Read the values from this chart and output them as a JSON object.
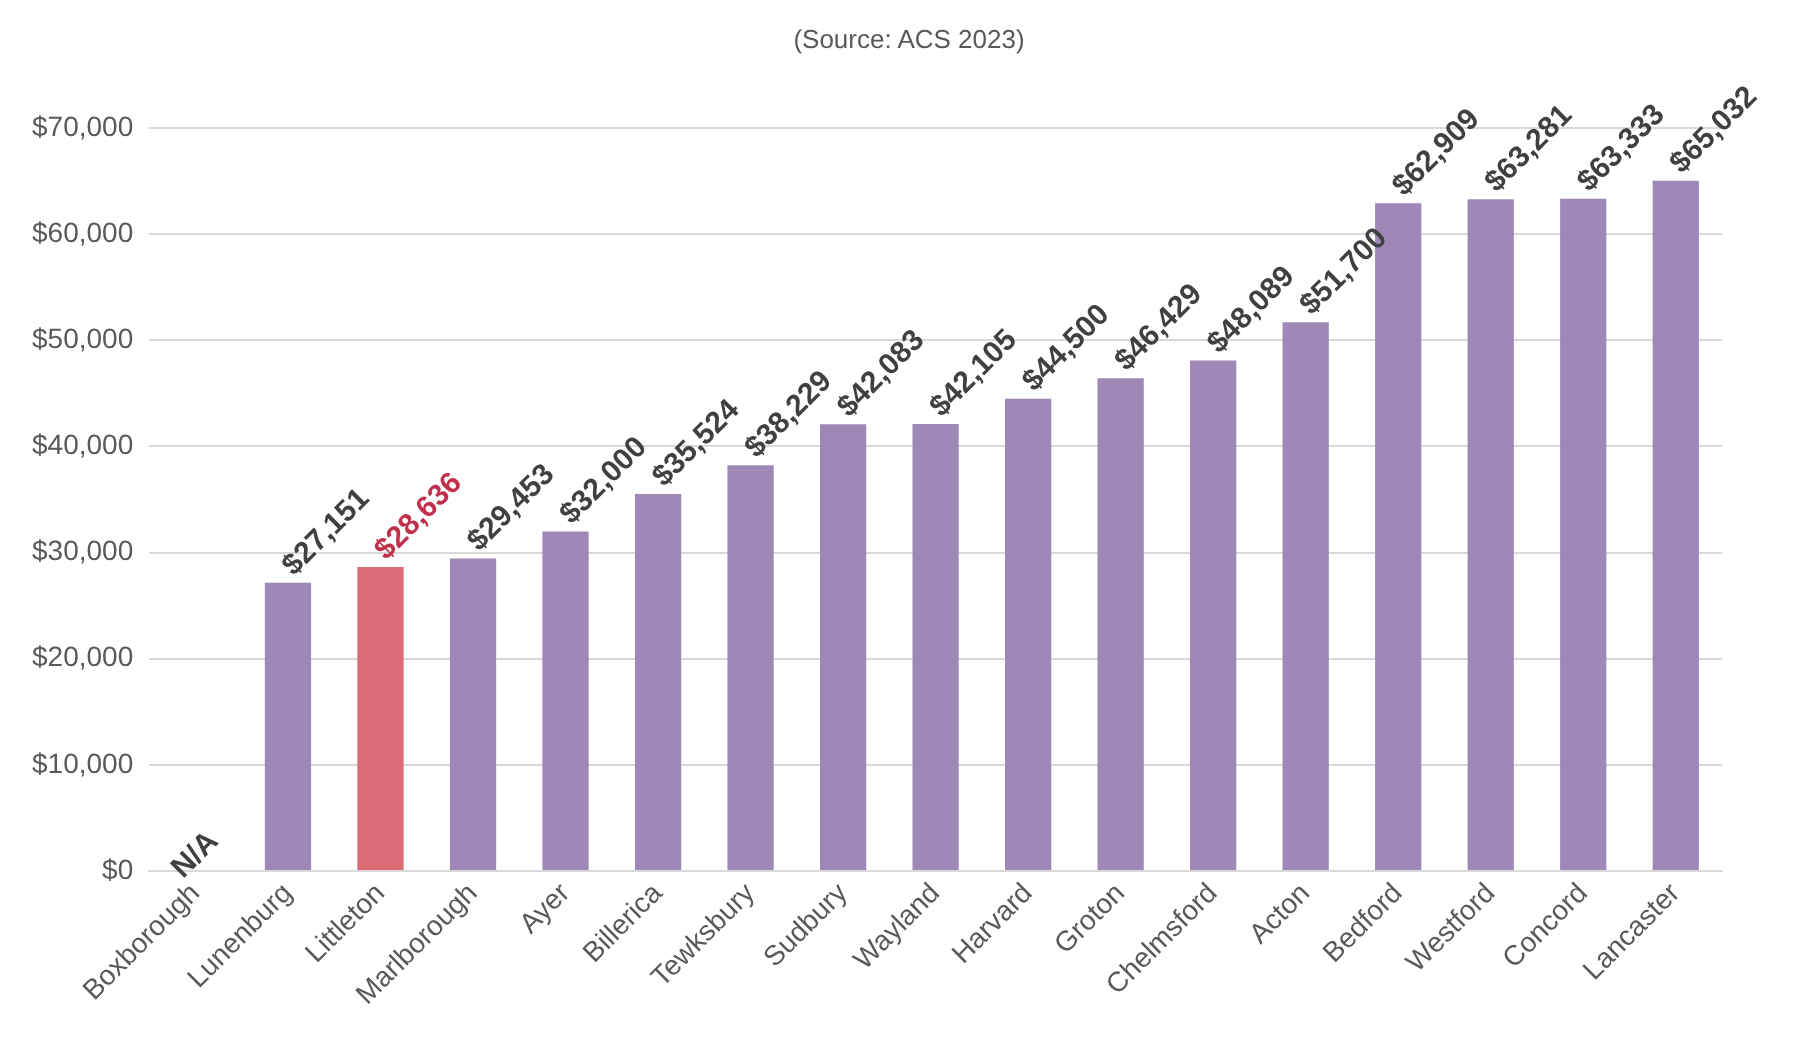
{
  "chart_data": {
    "type": "bar",
    "subtitle": "(Source: ACS 2023)",
    "categories": [
      "Boxborough",
      "Lunenburg",
      "Littleton",
      "Marlborough",
      "Ayer",
      "Billerica",
      "Tewksbury",
      "Sudbury",
      "Wayland",
      "Harvard",
      "Groton",
      "Chelmsford",
      "Acton",
      "Bedford",
      "Westford",
      "Concord",
      "Lancaster"
    ],
    "values": [
      null,
      27151,
      28636,
      29453,
      32000,
      35524,
      38229,
      42083,
      42105,
      44500,
      46429,
      48089,
      51700,
      62909,
      63281,
      63333,
      65032
    ],
    "value_labels": [
      "N/A",
      "$27,151",
      "$28,636",
      "$29,453",
      "$32,000",
      "$35,524",
      "$38,229",
      "$42,083",
      "$42,105",
      "$44,500",
      "$46,429",
      "$48,089",
      "$51,700",
      "$62,909",
      "$63,281",
      "$63,333",
      "$65,032"
    ],
    "colors": [
      "#9e88b8",
      "#9e88b8",
      "#dc6b75",
      "#9e88b8",
      "#9e88b8",
      "#9e88b8",
      "#9e88b8",
      "#9e88b8",
      "#9e88b8",
      "#9e88b8",
      "#9e88b8",
      "#9e88b8",
      "#9e88b8",
      "#9e88b8",
      "#9e88b8",
      "#9e88b8",
      "#9e88b8"
    ],
    "ylim": [
      0,
      70000
    ],
    "yticks": [
      {
        "value": 0,
        "label": "$0"
      },
      {
        "value": 10000,
        "label": "$10,000"
      },
      {
        "value": 20000,
        "label": "$20,000"
      },
      {
        "value": 30000,
        "label": "$30,000"
      },
      {
        "value": 40000,
        "label": "$40,000"
      },
      {
        "value": 50000,
        "label": "$50,000"
      },
      {
        "value": 60000,
        "label": "$60,000"
      },
      {
        "value": 70000,
        "label": "$70,000"
      }
    ],
    "grid": "y"
  }
}
